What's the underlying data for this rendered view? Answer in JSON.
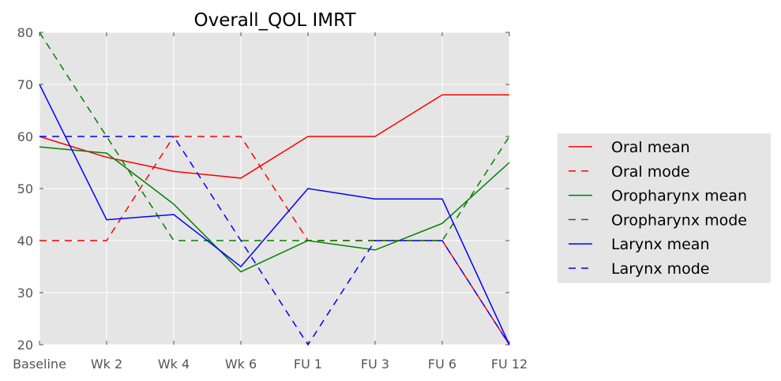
{
  "chart_data": {
    "type": "line",
    "title": "Overall_QOL IMRT",
    "categories": [
      "Baseline",
      "Wk 2",
      "Wk 4",
      "Wk 6",
      "FU 1",
      "FU 3",
      "FU 6",
      "FU 12"
    ],
    "ylim": [
      20,
      80
    ],
    "yticks": [
      20,
      30,
      40,
      50,
      60,
      70,
      80
    ],
    "grid": true,
    "legend_position": "right, outside plot",
    "series": [
      {
        "name": "Oral mean",
        "color": "#ff0000",
        "dash": "solid",
        "values": [
          60,
          56,
          53.3,
          52,
          60,
          60,
          68,
          68
        ]
      },
      {
        "name": "Oral mode",
        "color": "#ff0000",
        "dash": "dashed",
        "values": [
          40,
          40,
          60,
          60,
          40,
          40,
          40,
          20
        ]
      },
      {
        "name": "Oropharynx mean",
        "color": "#008000",
        "dash": "solid",
        "values": [
          58,
          56.8,
          47,
          34,
          40,
          38.2,
          43.3,
          55
        ]
      },
      {
        "name": "Oropharynx mode",
        "color": "#008000",
        "dash": "dashed",
        "values": [
          80,
          60,
          40,
          40,
          40,
          40,
          40,
          60
        ]
      },
      {
        "name": "Larynx mean",
        "color": "#0000ff",
        "dash": "solid",
        "values": [
          70,
          44,
          45,
          35,
          50,
          48,
          48,
          20
        ]
      },
      {
        "name": "Larynx mode",
        "color": "#0000ff",
        "dash": "dashed",
        "values": [
          60,
          60,
          60,
          40,
          20,
          40,
          40,
          20
        ]
      }
    ]
  }
}
